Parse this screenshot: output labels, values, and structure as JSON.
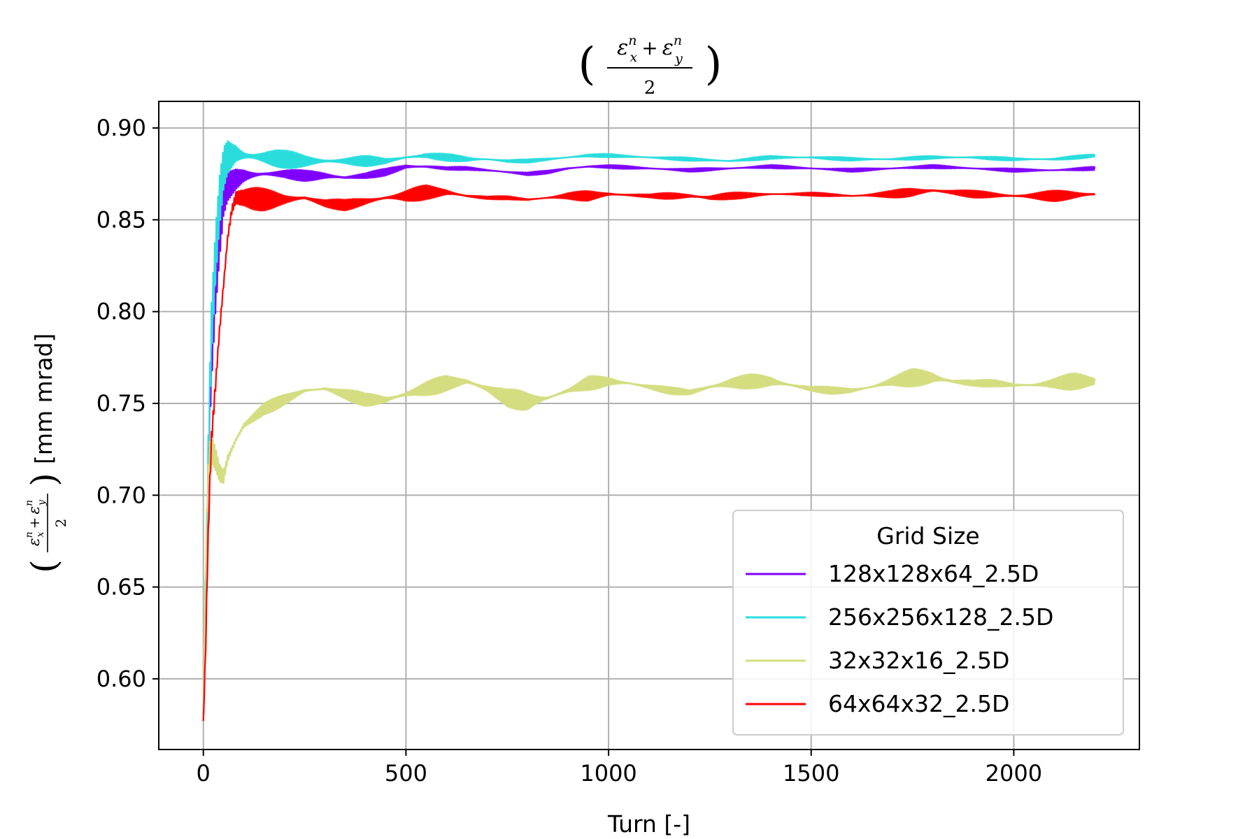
{
  "chart_data": {
    "type": "line",
    "title": {
      "numerator_left": "ε",
      "sup_left": "n",
      "sub_left": "x",
      "plus": "+",
      "numerator_right": "ε",
      "sup_right": "n",
      "sub_right": "y",
      "denominator": "2"
    },
    "xlabel": "Turn [-]",
    "ylabel_unit": "[mm mrad]",
    "xlim": [
      -110,
      2310
    ],
    "ylim": [
      0.5615,
      0.9145
    ],
    "xticks": [
      0,
      500,
      1000,
      1500,
      2000
    ],
    "xtick_labels": [
      "0",
      "500",
      "1000",
      "1500",
      "2000"
    ],
    "yticks": [
      0.6,
      0.65,
      0.7,
      0.75,
      0.8,
      0.85,
      0.9
    ],
    "ytick_labels": [
      "0.60",
      "0.65",
      "0.70",
      "0.75",
      "0.80",
      "0.85",
      "0.90"
    ],
    "grid": true,
    "legend": {
      "title": "Grid Size",
      "position": "lower-right"
    },
    "series": [
      {
        "name": "128x128x64_2.5D",
        "color": "#7f00ff",
        "x": [
          0,
          5,
          10,
          15,
          20,
          30,
          40,
          50,
          60,
          80,
          100,
          150,
          200,
          250,
          300,
          350,
          400,
          450,
          500,
          550,
          600,
          650,
          700,
          750,
          800,
          850,
          900,
          950,
          1000,
          1100,
          1200,
          1300,
          1400,
          1500,
          1600,
          1700,
          1800,
          1900,
          2000,
          2100,
          2200
        ],
        "y": [
          0.577,
          0.62,
          0.69,
          0.74,
          0.77,
          0.81,
          0.84,
          0.862,
          0.868,
          0.872,
          0.874,
          0.875,
          0.875,
          0.874,
          0.874,
          0.873,
          0.874,
          0.876,
          0.879,
          0.879,
          0.878,
          0.878,
          0.877,
          0.876,
          0.875,
          0.876,
          0.878,
          0.879,
          0.879,
          0.878,
          0.877,
          0.878,
          0.879,
          0.878,
          0.877,
          0.878,
          0.879,
          0.878,
          0.877,
          0.877,
          0.878
        ],
        "osc": [
          0,
          0.005,
          0.01,
          0.012,
          0.012,
          0.012,
          0.012,
          0.01,
          0.008,
          0.007,
          0.006,
          0.004,
          0.003,
          0.003,
          0.003,
          0.003,
          0.002,
          0.002,
          0.002,
          0.002,
          0.001,
          0.001,
          0.001,
          0.001,
          0.001,
          0.001,
          0.001,
          0.001,
          0.001,
          0.001,
          0.001,
          0.001,
          0.001,
          0.001,
          0.001,
          0.001,
          0.001,
          0.001,
          0.001,
          0.001,
          0.001
        ]
      },
      {
        "name": "256x256x128_2.5D",
        "color": "#2adddd",
        "x": [
          0,
          5,
          10,
          15,
          20,
          30,
          40,
          50,
          60,
          80,
          100,
          150,
          200,
          250,
          300,
          350,
          400,
          450,
          500,
          550,
          600,
          650,
          700,
          750,
          800,
          850,
          900,
          950,
          1000,
          1100,
          1200,
          1300,
          1400,
          1500,
          1600,
          1700,
          1800,
          1900,
          2000,
          2100,
          2200
        ],
        "y": [
          0.577,
          0.63,
          0.7,
          0.75,
          0.79,
          0.83,
          0.86,
          0.878,
          0.884,
          0.886,
          0.885,
          0.884,
          0.883,
          0.882,
          0.882,
          0.882,
          0.882,
          0.882,
          0.884,
          0.885,
          0.884,
          0.883,
          0.883,
          0.882,
          0.882,
          0.883,
          0.884,
          0.885,
          0.885,
          0.884,
          0.883,
          0.882,
          0.884,
          0.884,
          0.883,
          0.883,
          0.884,
          0.884,
          0.883,
          0.883,
          0.885
        ],
        "osc": [
          0,
          0.008,
          0.012,
          0.014,
          0.015,
          0.016,
          0.016,
          0.015,
          0.014,
          0.012,
          0.01,
          0.007,
          0.005,
          0.004,
          0.004,
          0.003,
          0.003,
          0.002,
          0.002,
          0.002,
          0.002,
          0.002,
          0.001,
          0.001,
          0.001,
          0.001,
          0.001,
          0.001,
          0.001,
          0.001,
          0.001,
          0.001,
          0.001,
          0.001,
          0.001,
          0.001,
          0.001,
          0.001,
          0.001,
          0.001,
          0.001
        ]
      },
      {
        "name": "32x32x16_2.5D",
        "color": "#d4dd80",
        "x": [
          0,
          5,
          10,
          15,
          20,
          30,
          40,
          50,
          60,
          80,
          100,
          150,
          200,
          250,
          300,
          350,
          400,
          450,
          500,
          550,
          600,
          650,
          700,
          750,
          800,
          850,
          900,
          950,
          1000,
          1050,
          1100,
          1150,
          1200,
          1250,
          1300,
          1350,
          1400,
          1450,
          1500,
          1550,
          1600,
          1650,
          1700,
          1750,
          1800,
          1850,
          1900,
          1950,
          2000,
          2050,
          2100,
          2150,
          2200
        ],
        "y": [
          0.577,
          0.66,
          0.7,
          0.72,
          0.725,
          0.72,
          0.712,
          0.71,
          0.72,
          0.73,
          0.738,
          0.747,
          0.752,
          0.757,
          0.758,
          0.755,
          0.752,
          0.752,
          0.755,
          0.758,
          0.761,
          0.762,
          0.758,
          0.753,
          0.751,
          0.753,
          0.757,
          0.761,
          0.762,
          0.761,
          0.759,
          0.757,
          0.756,
          0.759,
          0.761,
          0.762,
          0.762,
          0.76,
          0.758,
          0.757,
          0.757,
          0.759,
          0.762,
          0.764,
          0.764,
          0.762,
          0.761,
          0.761,
          0.76,
          0.76,
          0.761,
          0.762,
          0.762
        ],
        "osc": [
          0,
          0.01,
          0.01,
          0.01,
          0.01,
          0.01,
          0.01,
          0.01,
          0.008,
          0.008,
          0.006,
          0.004,
          0.003,
          0.002,
          0.002,
          0.003,
          0.004,
          0.006,
          0.003,
          0.004,
          0.005,
          0.005,
          0.004,
          0.005,
          0.006,
          0.003,
          0.002,
          0.004,
          0.003,
          0.002,
          0.002,
          0.002,
          0.002,
          0.004,
          0.004,
          0.004,
          0.004,
          0.003,
          0.002,
          0.002,
          0.002,
          0.002,
          0.003,
          0.005,
          0.006,
          0.004,
          0.002,
          0.002,
          0.002,
          0.002,
          0.003,
          0.005,
          0.006
        ]
      },
      {
        "name": "64x64x32_2.5D",
        "color": "#ff0000",
        "x": [
          0,
          5,
          10,
          15,
          20,
          30,
          40,
          50,
          60,
          70,
          80,
          100,
          150,
          200,
          250,
          300,
          350,
          400,
          450,
          500,
          550,
          600,
          650,
          700,
          750,
          800,
          850,
          900,
          950,
          1000,
          1100,
          1200,
          1250,
          1300,
          1400,
          1500,
          1600,
          1700,
          1750,
          1800,
          1850,
          1900,
          2000,
          2100,
          2200
        ],
        "y": [
          0.577,
          0.61,
          0.66,
          0.7,
          0.73,
          0.76,
          0.79,
          0.815,
          0.84,
          0.855,
          0.862,
          0.862,
          0.861,
          0.861,
          0.862,
          0.859,
          0.858,
          0.86,
          0.862,
          0.863,
          0.865,
          0.865,
          0.863,
          0.862,
          0.862,
          0.861,
          0.862,
          0.863,
          0.863,
          0.864,
          0.863,
          0.863,
          0.862,
          0.863,
          0.864,
          0.864,
          0.863,
          0.864,
          0.865,
          0.866,
          0.865,
          0.864,
          0.863,
          0.863,
          0.864
        ],
        "osc": [
          0,
          0.006,
          0.01,
          0.012,
          0.014,
          0.015,
          0.015,
          0.015,
          0.014,
          0.013,
          0.012,
          0.008,
          0.006,
          0.004,
          0.004,
          0.003,
          0.003,
          0.003,
          0.003,
          0.004,
          0.004,
          0.003,
          0.002,
          0.001,
          0.001,
          0.001,
          0.001,
          0.002,
          0.003,
          0.002,
          0.001,
          0.003,
          0.003,
          0.002,
          0.001,
          0.001,
          0.001,
          0.002,
          0.003,
          0.003,
          0.002,
          0.002,
          0.002,
          0.003,
          0.003
        ]
      }
    ]
  }
}
